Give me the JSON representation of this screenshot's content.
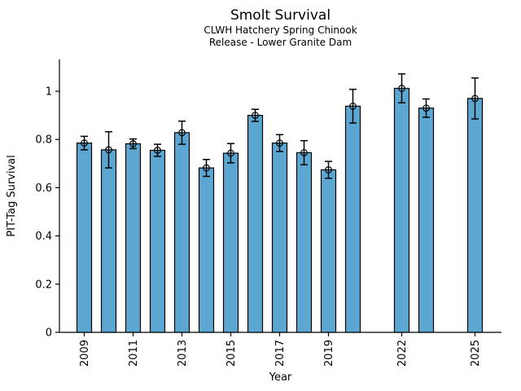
{
  "chart_data": {
    "type": "bar",
    "title": "Smolt Survival",
    "subtitle_line1": "CLWH Hatchery Spring Chinook",
    "subtitle_line2": "Release - Lower Granite Dam",
    "xlabel": "Year",
    "ylabel": "PIT-Tag Survival",
    "categories": [
      2009,
      2010,
      2011,
      2012,
      2013,
      2014,
      2015,
      2016,
      2017,
      2018,
      2019,
      2020,
      2022,
      2023,
      2025
    ],
    "values": [
      0.785,
      0.757,
      0.782,
      0.755,
      0.828,
      0.682,
      0.743,
      0.9,
      0.785,
      0.745,
      0.674,
      0.938,
      1.012,
      0.93,
      0.97
    ],
    "error_bars": [
      0.028,
      0.075,
      0.02,
      0.025,
      0.048,
      0.035,
      0.04,
      0.025,
      0.035,
      0.05,
      0.035,
      0.07,
      0.06,
      0.038,
      0.085
    ],
    "missing_years": [
      2021,
      2024
    ],
    "x_tick_labels": [
      "2009",
      "2011",
      "2013",
      "2015",
      "2017",
      "2019",
      "2022",
      "2025"
    ],
    "x_tick_years": [
      2009,
      2011,
      2013,
      2015,
      2017,
      2019,
      2022,
      2025
    ],
    "y_ticks": [
      0,
      0.2,
      0.4,
      0.6,
      0.8,
      1
    ],
    "y_tick_labels": [
      "0",
      "0.2",
      "0.4",
      "0.6",
      "0.8",
      "1"
    ],
    "ylim": [
      0,
      1.13
    ],
    "xlim": [
      2008,
      2026
    ],
    "grid": false,
    "legend": null,
    "marker": "open-circle",
    "bar_color": "#5BA7D1",
    "bar_edge_color": "#000000",
    "error_color": "#000000",
    "axis_color": "#000000",
    "background_color": "#ffffff"
  }
}
